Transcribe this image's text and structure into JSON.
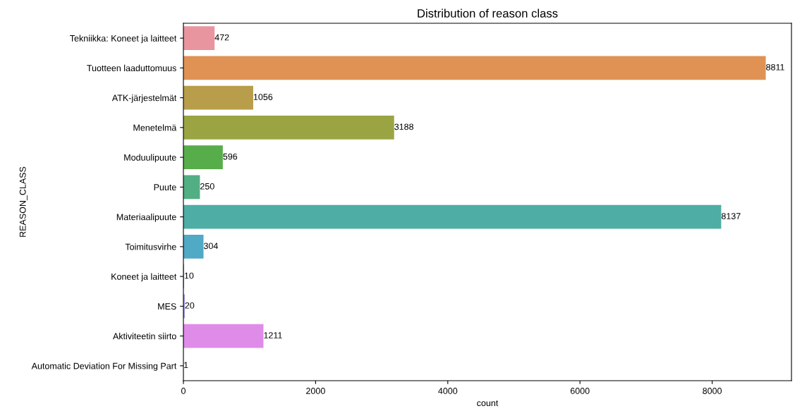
{
  "chart_data": {
    "type": "bar",
    "orientation": "horizontal",
    "title": "Distribution of reason class",
    "xlabel": "count",
    "ylabel": "REASON_CLASS",
    "categories": [
      "Tekniikka: Koneet ja laitteet",
      "Tuotteen laaduttomuus",
      "ATK-järjestelmät",
      "Menetelmä",
      "Moduulipuute",
      "Puute",
      "Materiaalipuute",
      "Toimitusvirhe",
      "Koneet ja laitteet",
      "MES",
      "Aktiviteetin siirto",
      "Automatic Deviation For Missing Part"
    ],
    "values": [
      472,
      8811,
      1056,
      3188,
      596,
      250,
      8137,
      304,
      10,
      20,
      1211,
      1
    ],
    "colors": [
      "#e8959f",
      "#e09254",
      "#b89d4a",
      "#9aa443",
      "#58ad4b",
      "#52ae83",
      "#4eada5",
      "#50a9c5",
      "#6ba1e0",
      "#9994e6",
      "#de8ce8",
      "#e68fbd"
    ],
    "xlim": [
      0,
      9200
    ],
    "xticks": [
      0,
      2000,
      4000,
      6000,
      8000
    ],
    "data_labels": true,
    "grid": false,
    "legend": false
  }
}
